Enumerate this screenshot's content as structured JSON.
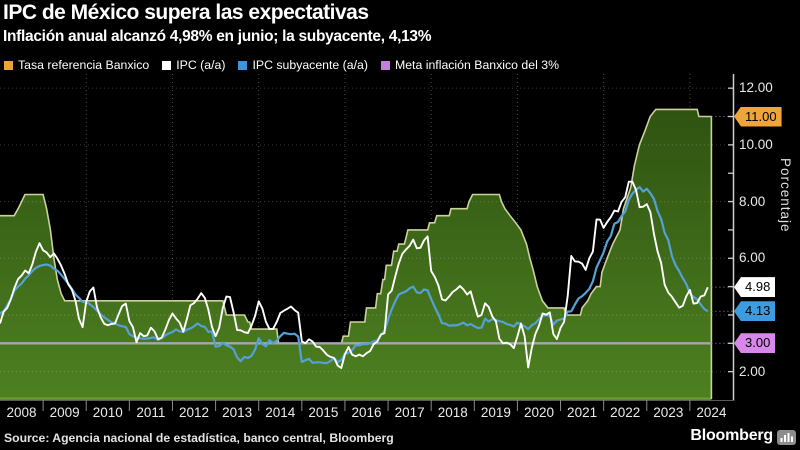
{
  "header": {
    "title": "IPC de México supera las expectativas",
    "subtitle": "Inflación anual alcanzó 4,98% en junio; la subyacente, 4,13%"
  },
  "legend": [
    {
      "label": "Tasa referencia Banxico",
      "color": "#e8a33d"
    },
    {
      "label": "IPC (a/a)",
      "color": "#ffffff"
    },
    {
      "label": "IPC subyacente (a/a)",
      "color": "#3f93d6"
    },
    {
      "label": "Meta inflación Banxico del 3%",
      "color": "#c77de0"
    }
  ],
  "footer": {
    "source": "Source: Agencia nacional de estadística, banco central, Bloomberg",
    "brand": "Bloomberg",
    "brand_icon": "bar-chart-icon"
  },
  "chart_data": {
    "type": "area",
    "title": "IPC de México supera las expectativas",
    "ylabel": "Porcentaje",
    "background": "#000000",
    "grid": "dotted",
    "x_axis": {
      "range": [
        2008,
        2025
      ],
      "years": [
        "2008",
        "2009",
        "2010",
        "2011",
        "2012",
        "2013",
        "2014",
        "2015",
        "2016",
        "2017",
        "2018",
        "2019",
        "2020",
        "2021",
        "2022",
        "2023",
        "2024"
      ],
      "gridline_years": [
        2010,
        2012,
        2014,
        2016,
        2018,
        2020,
        2022,
        2024
      ]
    },
    "y_axis": {
      "range": [
        1.0,
        12.5
      ],
      "title": "Porcentaje",
      "tick_values": [
        2,
        3,
        4,
        5,
        6,
        7,
        8,
        9,
        10,
        11,
        12
      ],
      "labeled_ticks": [
        {
          "value": 12,
          "label": "12.00"
        },
        {
          "value": 10,
          "label": "10.00"
        },
        {
          "value": 8,
          "label": "8.00"
        },
        {
          "value": 6,
          "label": "6.00"
        },
        {
          "value": 2,
          "label": "2.00"
        }
      ],
      "gridline_values": [
        2,
        4,
        6,
        8,
        10,
        12
      ]
    },
    "series": [
      {
        "name": "Tasa referencia Banxico",
        "type": "area",
        "legend_color": "#e8a33d",
        "edge_color": "#ccd19c",
        "fill_top": "#2b4d0f",
        "fill_bottom": "#4e8121",
        "bottom_edge_color": "#6e9b38",
        "last_value": 11.0,
        "points": [
          [
            2008.0,
            7.5
          ],
          [
            2008.33,
            7.5
          ],
          [
            2008.42,
            7.75
          ],
          [
            2008.5,
            8.0
          ],
          [
            2008.58,
            8.25
          ],
          [
            2009.0,
            8.25
          ],
          [
            2009.08,
            7.75
          ],
          [
            2009.17,
            7.0
          ],
          [
            2009.25,
            6.0
          ],
          [
            2009.33,
            5.25
          ],
          [
            2009.42,
            4.75
          ],
          [
            2009.5,
            4.5
          ],
          [
            2013.17,
            4.5
          ],
          [
            2013.25,
            4.0
          ],
          [
            2013.67,
            4.0
          ],
          [
            2013.75,
            3.75
          ],
          [
            2013.79,
            3.75
          ],
          [
            2013.83,
            3.5
          ],
          [
            2014.42,
            3.5
          ],
          [
            2014.46,
            3.0
          ],
          [
            2015.92,
            3.0
          ],
          [
            2015.96,
            3.25
          ],
          [
            2016.08,
            3.25
          ],
          [
            2016.13,
            3.75
          ],
          [
            2016.46,
            3.75
          ],
          [
            2016.5,
            4.25
          ],
          [
            2016.71,
            4.25
          ],
          [
            2016.75,
            4.75
          ],
          [
            2016.83,
            4.75
          ],
          [
            2016.88,
            5.25
          ],
          [
            2016.92,
            5.25
          ],
          [
            2016.96,
            5.75
          ],
          [
            2017.08,
            5.75
          ],
          [
            2017.13,
            6.25
          ],
          [
            2017.21,
            6.25
          ],
          [
            2017.25,
            6.5
          ],
          [
            2017.38,
            6.5
          ],
          [
            2017.42,
            6.75
          ],
          [
            2017.46,
            7.0
          ],
          [
            2017.92,
            7.0
          ],
          [
            2017.96,
            7.25
          ],
          [
            2018.08,
            7.25
          ],
          [
            2018.13,
            7.5
          ],
          [
            2018.42,
            7.5
          ],
          [
            2018.46,
            7.75
          ],
          [
            2018.83,
            7.75
          ],
          [
            2018.88,
            8.0
          ],
          [
            2018.96,
            8.25
          ],
          [
            2019.58,
            8.25
          ],
          [
            2019.63,
            8.0
          ],
          [
            2019.71,
            7.75
          ],
          [
            2019.83,
            7.5
          ],
          [
            2019.96,
            7.25
          ],
          [
            2020.08,
            7.0
          ],
          [
            2020.21,
            6.5
          ],
          [
            2020.29,
            6.0
          ],
          [
            2020.38,
            5.5
          ],
          [
            2020.46,
            5.0
          ],
          [
            2020.58,
            4.5
          ],
          [
            2020.71,
            4.25
          ],
          [
            2021.08,
            4.25
          ],
          [
            2021.13,
            4.0
          ],
          [
            2021.46,
            4.0
          ],
          [
            2021.5,
            4.25
          ],
          [
            2021.63,
            4.5
          ],
          [
            2021.71,
            4.75
          ],
          [
            2021.83,
            5.0
          ],
          [
            2021.92,
            5.0
          ],
          [
            2021.96,
            5.5
          ],
          [
            2022.08,
            6.0
          ],
          [
            2022.21,
            6.5
          ],
          [
            2022.38,
            7.0
          ],
          [
            2022.46,
            7.75
          ],
          [
            2022.63,
            8.5
          ],
          [
            2022.71,
            9.25
          ],
          [
            2022.83,
            10.0
          ],
          [
            2022.96,
            10.5
          ],
          [
            2023.08,
            11.0
          ],
          [
            2023.21,
            11.25
          ],
          [
            2024.17,
            11.25
          ],
          [
            2024.21,
            11.0
          ],
          [
            2024.5,
            11.0
          ]
        ]
      },
      {
        "name": "IPC (a/a)",
        "type": "line",
        "color": "#ffffff",
        "start": 2008,
        "last_value": 4.98,
        "monthly_values": [
          3.7,
          4.11,
          4.25,
          4.55,
          4.95,
          5.26,
          5.39,
          5.57,
          5.47,
          5.78,
          6.23,
          6.53,
          6.28,
          6.2,
          6.04,
          6.17,
          5.98,
          5.74,
          5.44,
          5.08,
          4.89,
          4.5,
          3.86,
          3.57,
          4.46,
          4.83,
          4.97,
          4.27,
          3.92,
          3.69,
          3.64,
          3.68,
          3.7,
          4.02,
          4.32,
          4.4,
          3.78,
          3.57,
          3.04,
          3.36,
          3.25,
          3.28,
          3.55,
          3.42,
          3.14,
          3.2,
          3.48,
          3.82,
          4.05,
          3.87,
          3.73,
          3.41,
          3.85,
          4.34,
          4.42,
          4.57,
          4.77,
          4.6,
          4.18,
          3.57,
          3.25,
          3.55,
          4.25,
          4.65,
          4.63,
          4.09,
          3.47,
          3.46,
          3.39,
          3.36,
          3.62,
          3.97,
          4.48,
          4.23,
          3.76,
          3.5,
          3.51,
          3.75,
          4.07,
          4.15,
          4.22,
          4.3,
          4.17,
          4.08,
          3.07,
          3.0,
          3.14,
          3.06,
          2.88,
          2.87,
          2.74,
          2.59,
          2.52,
          2.48,
          2.21,
          2.13,
          2.61,
          2.87,
          2.6,
          2.54,
          2.6,
          2.54,
          2.65,
          2.73,
          2.97,
          3.06,
          3.31,
          3.36,
          4.72,
          4.86,
          5.35,
          5.82,
          6.16,
          6.31,
          6.44,
          6.66,
          6.35,
          6.37,
          6.63,
          6.77,
          5.55,
          5.34,
          5.04,
          4.55,
          4.51,
          4.65,
          4.81,
          4.9,
          5.02,
          4.9,
          4.72,
          4.83,
          4.37,
          3.94,
          4.0,
          4.41,
          4.28,
          3.95,
          3.78,
          3.16,
          3.0,
          3.02,
          2.97,
          2.83,
          3.24,
          3.7,
          3.25,
          2.15,
          2.84,
          3.33,
          3.62,
          4.05,
          4.01,
          4.09,
          3.33,
          3.15,
          3.54,
          3.76,
          4.67,
          6.08,
          5.89,
          5.88,
          5.81,
          5.59,
          6.0,
          6.24,
          7.37,
          7.36,
          7.07,
          7.28,
          7.45,
          7.68,
          7.65,
          7.99,
          8.15,
          8.7,
          8.7,
          8.41,
          7.8,
          7.82,
          7.91,
          7.62,
          6.85,
          6.25,
          5.84,
          5.06,
          4.79,
          4.64,
          4.45,
          4.26,
          4.32,
          4.66,
          4.88,
          4.4,
          4.42,
          4.65,
          4.69,
          4.98
        ]
      },
      {
        "name": "IPC subyacente (a/a)",
        "type": "line",
        "color": "#55a0d6",
        "start": 2008,
        "last_value": 4.13,
        "monthly_values": [
          4.06,
          4.13,
          4.34,
          4.56,
          4.86,
          5.0,
          5.11,
          5.28,
          5.4,
          5.55,
          5.66,
          5.73,
          5.76,
          5.78,
          5.74,
          5.63,
          5.56,
          5.42,
          5.27,
          5.1,
          4.92,
          4.72,
          4.6,
          4.46,
          4.45,
          4.38,
          4.28,
          4.15,
          4.02,
          3.92,
          3.83,
          3.74,
          3.7,
          3.64,
          3.6,
          3.58,
          3.32,
          3.25,
          3.21,
          3.18,
          3.16,
          3.17,
          3.19,
          3.21,
          3.12,
          3.18,
          3.28,
          3.35,
          3.4,
          3.49,
          3.42,
          3.4,
          3.48,
          3.52,
          3.6,
          3.7,
          3.61,
          3.58,
          3.4,
          3.42,
          2.88,
          2.9,
          3.02,
          2.93,
          2.88,
          2.79,
          2.5,
          2.37,
          2.52,
          2.48,
          2.56,
          2.78,
          3.18,
          2.98,
          2.89,
          3.11,
          3.0,
          3.09,
          3.25,
          3.37,
          3.34,
          3.32,
          3.34,
          3.24,
          2.34,
          2.4,
          2.45,
          2.31,
          2.33,
          2.33,
          2.31,
          2.3,
          2.38,
          2.47,
          2.34,
          2.41,
          2.64,
          2.66,
          2.76,
          2.93,
          2.93,
          2.97,
          2.97,
          3.0,
          3.07,
          3.1,
          3.29,
          3.44,
          3.84,
          4.2,
          4.48,
          4.72,
          4.78,
          4.83,
          4.94,
          5.0,
          4.8,
          4.77,
          4.9,
          4.87,
          4.56,
          4.27,
          4.02,
          3.71,
          3.69,
          3.62,
          3.63,
          3.63,
          3.67,
          3.73,
          3.63,
          3.68,
          3.6,
          3.54,
          3.55,
          3.87,
          3.77,
          3.85,
          3.82,
          3.78,
          3.75,
          3.68,
          3.65,
          3.59,
          3.73,
          3.66,
          3.6,
          3.5,
          3.64,
          3.71,
          3.85,
          3.97,
          3.99,
          3.98,
          3.66,
          3.8,
          3.84,
          3.87,
          4.12,
          4.13,
          4.37,
          4.58,
          4.66,
          4.78,
          4.92,
          5.19,
          5.67,
          5.94,
          6.21,
          6.59,
          6.78,
          7.22,
          7.28,
          7.49,
          7.65,
          8.05,
          8.28,
          8.42,
          8.51,
          8.35,
          8.45,
          8.29,
          8.09,
          7.67,
          7.39,
          6.89,
          6.64,
          6.08,
          5.76,
          5.55,
          5.3,
          5.09,
          4.76,
          4.64,
          4.55,
          4.37,
          4.21,
          4.13
        ]
      },
      {
        "name": "Meta inflación Banxico del 3%",
        "type": "hline",
        "color": "#aaa3b3",
        "value": 3.0
      }
    ],
    "badges": [
      {
        "label": "11.00",
        "value": 11.0,
        "color": "#f0a43c"
      },
      {
        "label": "4.98",
        "value": 4.98,
        "color": "#ffffff"
      },
      {
        "label": "4.13",
        "value": 4.13,
        "color": "#3d9ce0"
      },
      {
        "label": "3.00",
        "value": 3.0,
        "color": "#d887ea"
      }
    ]
  }
}
